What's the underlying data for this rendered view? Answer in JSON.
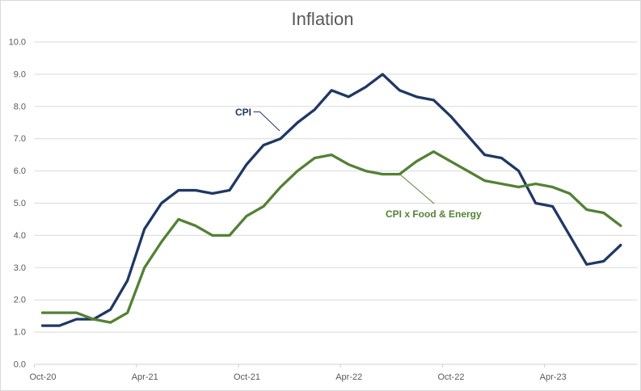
{
  "chart_data": {
    "type": "line",
    "title": "Inflation",
    "x": [
      "Oct-20",
      "Nov-20",
      "Dec-20",
      "Jan-21",
      "Feb-21",
      "Mar-21",
      "Apr-21",
      "May-21",
      "Jun-21",
      "Jul-21",
      "Aug-21",
      "Sep-21",
      "Oct-21",
      "Nov-21",
      "Dec-21",
      "Jan-22",
      "Feb-22",
      "Mar-22",
      "Apr-22",
      "May-22",
      "Jun-22",
      "Jul-22",
      "Aug-22",
      "Sep-22",
      "Oct-22",
      "Nov-22",
      "Dec-22",
      "Jan-23",
      "Feb-23",
      "Mar-23",
      "Apr-23",
      "May-23",
      "Jun-23",
      "Jul-23",
      "Aug-23"
    ],
    "x_tick_labels": [
      "Oct-20",
      "Apr-21",
      "Oct-21",
      "Apr-22",
      "Oct-22",
      "Apr-23"
    ],
    "x_tick_every": 6,
    "y_tick_labels": [
      "0.0",
      "1.0",
      "2.0",
      "3.0",
      "4.0",
      "5.0",
      "6.0",
      "7.0",
      "8.0",
      "9.0",
      "10.0"
    ],
    "ylim": [
      0,
      10
    ],
    "grid": "horizontal",
    "legend_position": "none-inline-labels",
    "series": [
      {
        "name": "CPI",
        "color": "#1F3864",
        "values": [
          1.2,
          1.2,
          1.4,
          1.4,
          1.7,
          2.6,
          4.2,
          5.0,
          5.4,
          5.4,
          5.3,
          5.4,
          6.2,
          6.8,
          7.0,
          7.5,
          7.9,
          8.5,
          8.3,
          8.6,
          9.0,
          8.5,
          8.3,
          8.2,
          7.7,
          7.1,
          6.5,
          6.4,
          6.0,
          5.0,
          4.9,
          4.0,
          3.1,
          3.2,
          3.7
        ]
      },
      {
        "name": "CPI x Food & Energy",
        "color": "#538135",
        "values": [
          1.6,
          1.6,
          1.6,
          1.4,
          1.3,
          1.6,
          3.0,
          3.8,
          4.5,
          4.3,
          4.0,
          4.0,
          4.6,
          4.9,
          5.5,
          6.0,
          6.4,
          6.5,
          6.2,
          6.0,
          5.9,
          5.9,
          6.3,
          6.6,
          6.3,
          6.0,
          5.7,
          5.6,
          5.5,
          5.6,
          5.5,
          5.3,
          4.8,
          4.7,
          4.3
        ]
      }
    ],
    "annotations": [
      {
        "text": "CPI",
        "color": "#1F3864"
      },
      {
        "text": "CPI x Food & Energy",
        "color": "#538135"
      }
    ]
  },
  "colors": {
    "background": "#FFFFFF",
    "chart_border": "#D9D9D9",
    "gridline": "#D9D9D9",
    "axis_line": "#D0D0D0",
    "axis_text": "#595959",
    "title_text": "#595959",
    "cpi_line": "#1F3864",
    "core_line": "#538135"
  }
}
